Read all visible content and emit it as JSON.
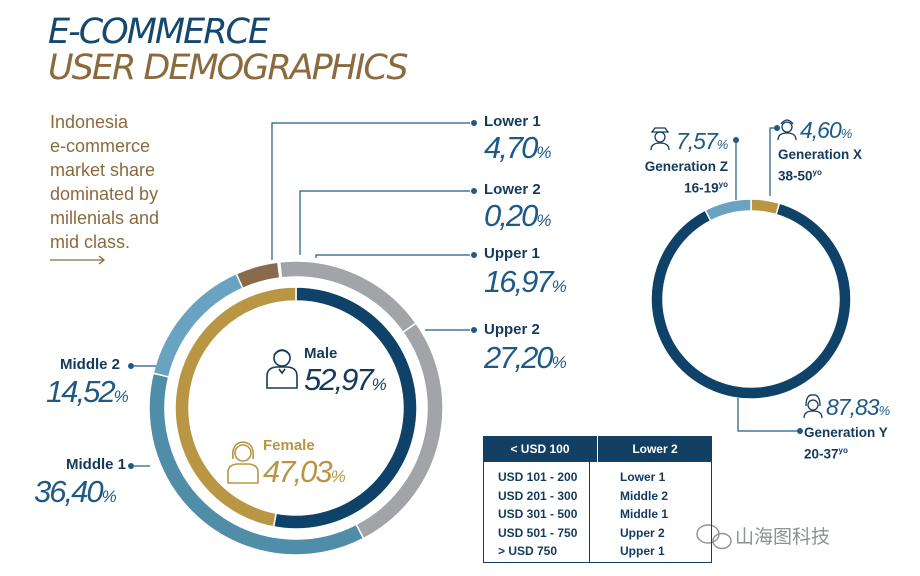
{
  "title_line1": "E-COMMERCE",
  "title_line2": "USER DEMOGRAPHICS",
  "intro_lines": [
    "Indonesia",
    "e-commerce",
    "market share",
    "dominated by",
    "millenials and",
    "mid class."
  ],
  "colors": {
    "navy": "#0f4268",
    "gold": "#b89643",
    "gray": "#a2a4a7",
    "light_blue": "#6aa3c1",
    "teal": "#4f8da8",
    "brown": "#8a6a4c",
    "cream": "#e9e3d6"
  },
  "chart_data": [
    {
      "type": "pie",
      "variant": "donut-outer",
      "categories": [
        "Lower 1",
        "Lower 2",
        "Upper 1",
        "Upper 2",
        "Middle 1",
        "Middle 2"
      ],
      "values": [
        4.7,
        0.2,
        16.97,
        27.2,
        36.4,
        14.52
      ],
      "labels": [
        "4,70",
        "0,20",
        "16,97",
        "27,20",
        "36,40",
        "14,52"
      ],
      "percent_sign": "%",
      "colors": [
        "#8a6a4c",
        "#e9e3d6",
        "#a2a4a7",
        "#a2a4a7",
        "#4f8da8",
        "#6aa3c1"
      ]
    },
    {
      "type": "pie",
      "variant": "donut-inner",
      "categories": [
        "Male",
        "Female"
      ],
      "values": [
        52.97,
        47.03
      ],
      "labels": [
        "52,97",
        "47,03"
      ],
      "percent_sign": "%",
      "colors": [
        "#0f4268",
        "#b89643"
      ]
    },
    {
      "type": "pie",
      "variant": "donut",
      "categories": [
        "Generation X",
        "Generation Y",
        "Generation Z"
      ],
      "ranges": [
        "38-50",
        "20-37",
        "16-19"
      ],
      "range_suffix": "yo",
      "values": [
        4.6,
        87.83,
        7.57
      ],
      "labels": [
        "4,60",
        "87,83",
        "7,57"
      ],
      "percent_sign": "%",
      "colors": [
        "#b89643",
        "#0f4268",
        "#6aa3c1"
      ]
    }
  ],
  "table": {
    "headers": [
      "< USD 100",
      "Lower 2"
    ],
    "rows": [
      [
        "USD 101 - 200",
        "Lower 1"
      ],
      [
        "USD 201 - 300",
        "Middle 2"
      ],
      [
        "USD 301 - 500",
        "Middle 1"
      ],
      [
        "USD 501 - 750",
        "Upper 2"
      ],
      [
        "> USD 750",
        "Upper 1"
      ]
    ]
  },
  "watermark": "山海图科技"
}
